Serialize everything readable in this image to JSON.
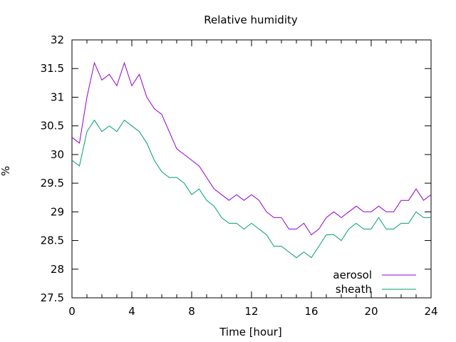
{
  "chart_data": {
    "type": "line",
    "title": "Relative humidity",
    "xlabel": "Time [hour]",
    "ylabel": "%",
    "xlim": [
      0,
      24
    ],
    "ylim": [
      27.5,
      32
    ],
    "x_ticks": [
      0,
      4,
      8,
      12,
      16,
      20,
      24
    ],
    "y_ticks": [
      27.5,
      28,
      28.5,
      29,
      29.5,
      30,
      30.5,
      31,
      31.5,
      32
    ],
    "grid": false,
    "legend_position": "bottom-right",
    "colors": {
      "aerosol": "#9400d3",
      "sheath": "#009e73"
    },
    "series": [
      {
        "name": "aerosol",
        "x": [
          0,
          0.5,
          1,
          1.5,
          2,
          2.5,
          3,
          3.5,
          4,
          4.5,
          5,
          5.5,
          6,
          6.5,
          7,
          7.5,
          8,
          8.5,
          9,
          9.5,
          10,
          10.5,
          11,
          11.5,
          12,
          12.5,
          13,
          13.5,
          14,
          14.5,
          15,
          15.5,
          16,
          16.5,
          17,
          17.5,
          18,
          18.5,
          19,
          19.5,
          20,
          20.5,
          21,
          21.5,
          22,
          22.5,
          23,
          23.5,
          24
        ],
        "values": [
          30.3,
          30.2,
          31.0,
          31.6,
          31.3,
          31.4,
          31.2,
          31.6,
          31.2,
          31.4,
          31.0,
          30.8,
          30.7,
          30.4,
          30.1,
          30.0,
          29.9,
          29.8,
          29.6,
          29.4,
          29.3,
          29.2,
          29.3,
          29.2,
          29.3,
          29.2,
          29.0,
          28.9,
          28.9,
          28.7,
          28.7,
          28.8,
          28.6,
          28.7,
          28.9,
          29.0,
          28.9,
          29.0,
          29.1,
          29.0,
          29.0,
          29.1,
          29.0,
          29.0,
          29.2,
          29.2,
          29.4,
          29.2,
          29.3
        ]
      },
      {
        "name": "sheath",
        "x": [
          0,
          0.5,
          1,
          1.5,
          2,
          2.5,
          3,
          3.5,
          4,
          4.5,
          5,
          5.5,
          6,
          6.5,
          7,
          7.5,
          8,
          8.5,
          9,
          9.5,
          10,
          10.5,
          11,
          11.5,
          12,
          12.5,
          13,
          13.5,
          14,
          14.5,
          15,
          15.5,
          16,
          16.5,
          17,
          17.5,
          18,
          18.5,
          19,
          19.5,
          20,
          20.5,
          21,
          21.5,
          22,
          22.5,
          23,
          23.5,
          24
        ],
        "values": [
          29.9,
          29.8,
          30.4,
          30.6,
          30.4,
          30.5,
          30.4,
          30.6,
          30.5,
          30.4,
          30.2,
          29.9,
          29.7,
          29.6,
          29.6,
          29.5,
          29.3,
          29.4,
          29.2,
          29.1,
          28.9,
          28.8,
          28.8,
          28.7,
          28.8,
          28.7,
          28.6,
          28.4,
          28.4,
          28.3,
          28.2,
          28.3,
          28.2,
          28.4,
          28.6,
          28.6,
          28.5,
          28.7,
          28.8,
          28.7,
          28.7,
          28.9,
          28.7,
          28.7,
          28.8,
          28.8,
          29.0,
          28.9,
          28.9
        ]
      }
    ]
  }
}
